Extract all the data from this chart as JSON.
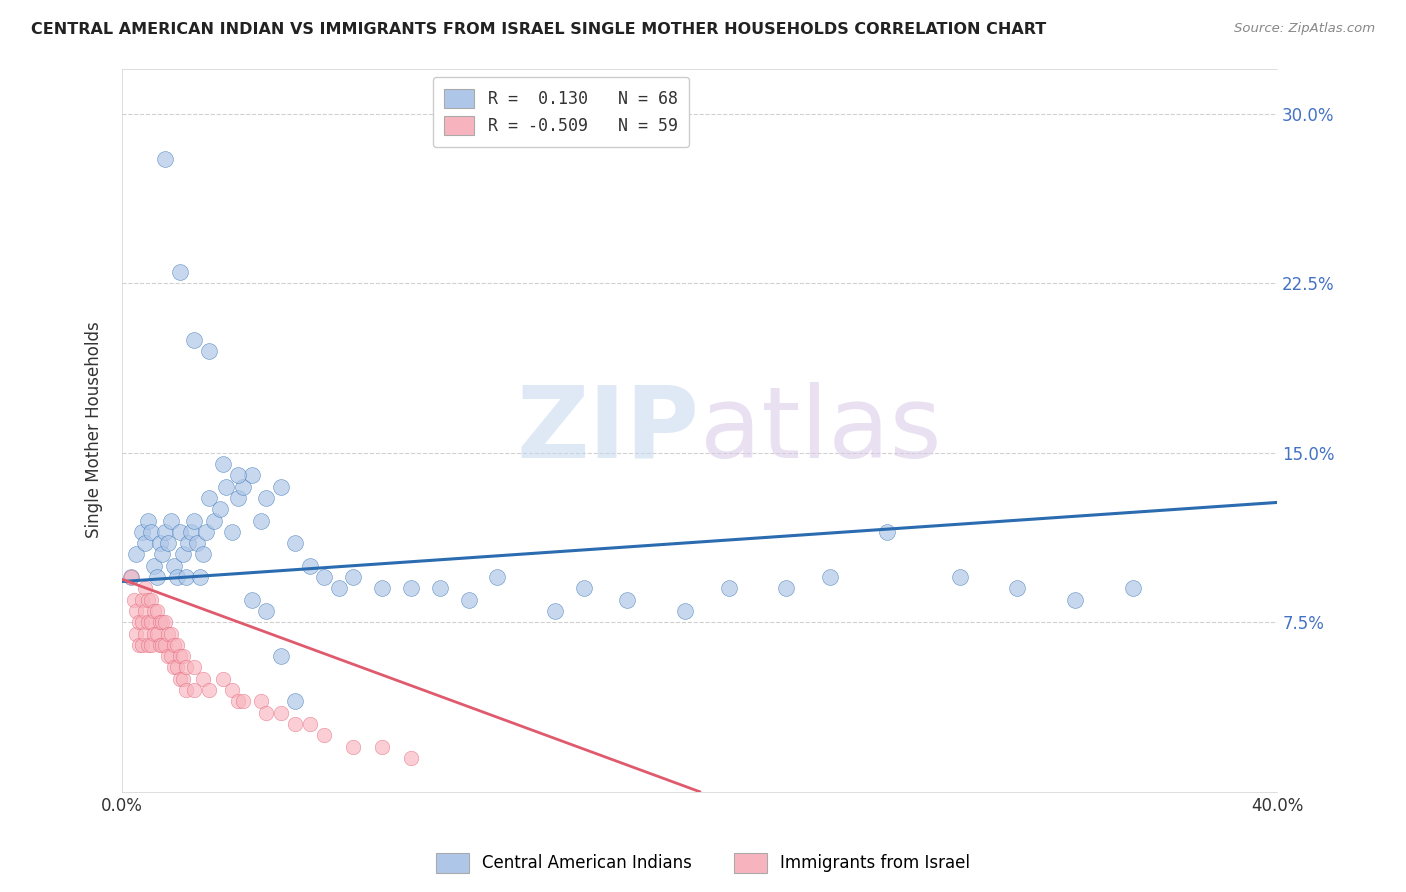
{
  "title": "CENTRAL AMERICAN INDIAN VS IMMIGRANTS FROM ISRAEL SINGLE MOTHER HOUSEHOLDS CORRELATION CHART",
  "source": "Source: ZipAtlas.com",
  "ylabel": "Single Mother Households",
  "xlim": [
    0.0,
    0.4
  ],
  "ylim": [
    0.0,
    0.32
  ],
  "yticks": [
    0.075,
    0.15,
    0.225,
    0.3
  ],
  "ytick_labels": [
    "7.5%",
    "15.0%",
    "22.5%",
    "30.0%"
  ],
  "xtick_labels": [
    "0.0%",
    "",
    "",
    "",
    "40.0%"
  ],
  "legend_blue_R": "R =  0.130",
  "legend_blue_N": "N = 68",
  "legend_pink_R": "R = -0.509",
  "legend_pink_N": "N = 59",
  "legend_blue_label": "Central American Indians",
  "legend_pink_label": "Immigrants from Israel",
  "blue_color": "#aec6e8",
  "blue_line_color": "#2b6cb0",
  "pink_color": "#f8b4be",
  "pink_line_color": "#e05a6e",
  "watermark_zip": "ZIP",
  "watermark_atlas": "atlas",
  "blue_scatter_x": [
    0.003,
    0.005,
    0.007,
    0.008,
    0.009,
    0.01,
    0.011,
    0.012,
    0.013,
    0.014,
    0.015,
    0.016,
    0.017,
    0.018,
    0.019,
    0.02,
    0.021,
    0.022,
    0.023,
    0.024,
    0.025,
    0.026,
    0.027,
    0.028,
    0.029,
    0.03,
    0.032,
    0.034,
    0.036,
    0.038,
    0.04,
    0.042,
    0.045,
    0.048,
    0.05,
    0.055,
    0.06,
    0.065,
    0.07,
    0.075,
    0.08,
    0.09,
    0.1,
    0.11,
    0.12,
    0.13,
    0.15,
    0.16,
    0.175,
    0.195,
    0.21,
    0.23,
    0.245,
    0.265,
    0.29,
    0.31,
    0.33,
    0.35,
    0.015,
    0.02,
    0.025,
    0.03,
    0.035,
    0.04,
    0.045,
    0.05,
    0.055,
    0.06
  ],
  "blue_scatter_y": [
    0.095,
    0.105,
    0.115,
    0.11,
    0.12,
    0.115,
    0.1,
    0.095,
    0.11,
    0.105,
    0.115,
    0.11,
    0.12,
    0.1,
    0.095,
    0.115,
    0.105,
    0.095,
    0.11,
    0.115,
    0.12,
    0.11,
    0.095,
    0.105,
    0.115,
    0.13,
    0.12,
    0.125,
    0.135,
    0.115,
    0.13,
    0.135,
    0.14,
    0.12,
    0.13,
    0.135,
    0.11,
    0.1,
    0.095,
    0.09,
    0.095,
    0.09,
    0.09,
    0.09,
    0.085,
    0.095,
    0.08,
    0.09,
    0.085,
    0.08,
    0.09,
    0.09,
    0.095,
    0.115,
    0.095,
    0.09,
    0.085,
    0.09,
    0.28,
    0.23,
    0.2,
    0.195,
    0.145,
    0.14,
    0.085,
    0.08,
    0.06,
    0.04
  ],
  "pink_scatter_x": [
    0.003,
    0.004,
    0.005,
    0.005,
    0.006,
    0.006,
    0.007,
    0.007,
    0.007,
    0.008,
    0.008,
    0.008,
    0.009,
    0.009,
    0.009,
    0.01,
    0.01,
    0.01,
    0.011,
    0.011,
    0.012,
    0.012,
    0.013,
    0.013,
    0.014,
    0.014,
    0.015,
    0.015,
    0.016,
    0.016,
    0.017,
    0.017,
    0.018,
    0.018,
    0.019,
    0.019,
    0.02,
    0.02,
    0.021,
    0.021,
    0.022,
    0.022,
    0.025,
    0.025,
    0.028,
    0.03,
    0.035,
    0.038,
    0.04,
    0.042,
    0.048,
    0.05,
    0.055,
    0.06,
    0.065,
    0.07,
    0.08,
    0.09,
    0.1
  ],
  "pink_scatter_y": [
    0.095,
    0.085,
    0.08,
    0.07,
    0.075,
    0.065,
    0.085,
    0.075,
    0.065,
    0.09,
    0.08,
    0.07,
    0.085,
    0.075,
    0.065,
    0.085,
    0.075,
    0.065,
    0.08,
    0.07,
    0.08,
    0.07,
    0.075,
    0.065,
    0.075,
    0.065,
    0.075,
    0.065,
    0.07,
    0.06,
    0.07,
    0.06,
    0.065,
    0.055,
    0.065,
    0.055,
    0.06,
    0.05,
    0.06,
    0.05,
    0.055,
    0.045,
    0.055,
    0.045,
    0.05,
    0.045,
    0.05,
    0.045,
    0.04,
    0.04,
    0.04,
    0.035,
    0.035,
    0.03,
    0.03,
    0.025,
    0.02,
    0.02,
    0.015
  ],
  "blue_line_start_x": 0.0,
  "blue_line_start_y": 0.093,
  "blue_line_end_x": 0.4,
  "blue_line_end_y": 0.128,
  "pink_line_start_x": 0.0,
  "pink_line_start_y": 0.094,
  "pink_line_end_x": 0.2,
  "pink_line_end_y": 0.0
}
